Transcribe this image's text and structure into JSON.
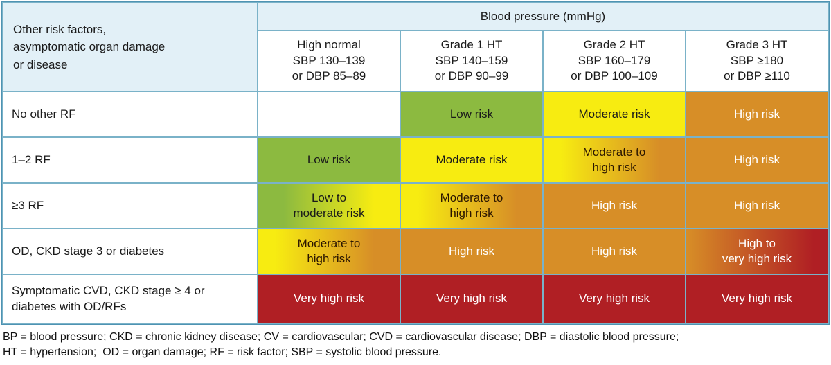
{
  "table": {
    "corner_label": "Other risk factors,\nasymptomatic organ damage\nor disease",
    "bp_header": "Blood pressure (mmHg)",
    "columns": [
      {
        "label": "High normal\nSBP 130–139\nor DBP 85–89"
      },
      {
        "label": "Grade 1 HT\nSBP 140–159\nor DBP 90–99"
      },
      {
        "label": "Grade 2 HT\nSBP 160–179\nor DBP 100–109"
      },
      {
        "label": "Grade 3 HT\nSBP ≥180\nor DBP ≥110"
      }
    ],
    "rows": [
      {
        "label": "No other RF",
        "cells": [
          {
            "text": "",
            "level": "none"
          },
          {
            "text": "Low risk",
            "level": "low"
          },
          {
            "text": "Moderate risk",
            "level": "moderate"
          },
          {
            "text": "High risk",
            "level": "high"
          }
        ]
      },
      {
        "label": "1–2 RF",
        "cells": [
          {
            "text": "Low risk",
            "level": "low"
          },
          {
            "text": "Moderate risk",
            "level": "moderate"
          },
          {
            "text": "Moderate to\nhigh risk",
            "level": "moderate-high"
          },
          {
            "text": "High risk",
            "level": "high"
          }
        ]
      },
      {
        "label": "≥3 RF",
        "cells": [
          {
            "text": "Low to\nmoderate risk",
            "level": "low-moderate"
          },
          {
            "text": "Moderate to\nhigh risk",
            "level": "moderate-high"
          },
          {
            "text": "High risk",
            "level": "high"
          },
          {
            "text": "High risk",
            "level": "high"
          }
        ]
      },
      {
        "label": "OD, CKD stage 3 or diabetes",
        "cells": [
          {
            "text": "Moderate to\nhigh risk",
            "level": "moderate-high"
          },
          {
            "text": "High risk",
            "level": "high"
          },
          {
            "text": "High risk",
            "level": "high"
          },
          {
            "text": "High to\nvery high risk",
            "level": "high-very-high"
          }
        ]
      },
      {
        "label": "Symptomatic CVD, CKD stage ≥ 4 or\ndiabetes with OD/RFs",
        "cells": [
          {
            "text": "Very high risk",
            "level": "very-high"
          },
          {
            "text": "Very high risk",
            "level": "very-high"
          },
          {
            "text": "Very high risk",
            "level": "very-high"
          },
          {
            "text": "Very high risk",
            "level": "very-high"
          }
        ]
      }
    ]
  },
  "footnote": {
    "line1": "BP = blood pressure; CKD = chronic kidney disease; CV = cardiovascular; CVD = cardiovascular disease; DBP = diastolic blood pressure;",
    "line2": "HT = hypertension;  OD = organ damage; RF = risk factor; SBP = systolic blood pressure."
  },
  "colors": {
    "low_risk": "#8cba40",
    "moderate_risk": "#f7ec11",
    "high_risk": "#d78e27",
    "very_high_risk": "#b01f24",
    "header_bg": "#e2f0f7",
    "grid_border": "#7ab2c8"
  }
}
